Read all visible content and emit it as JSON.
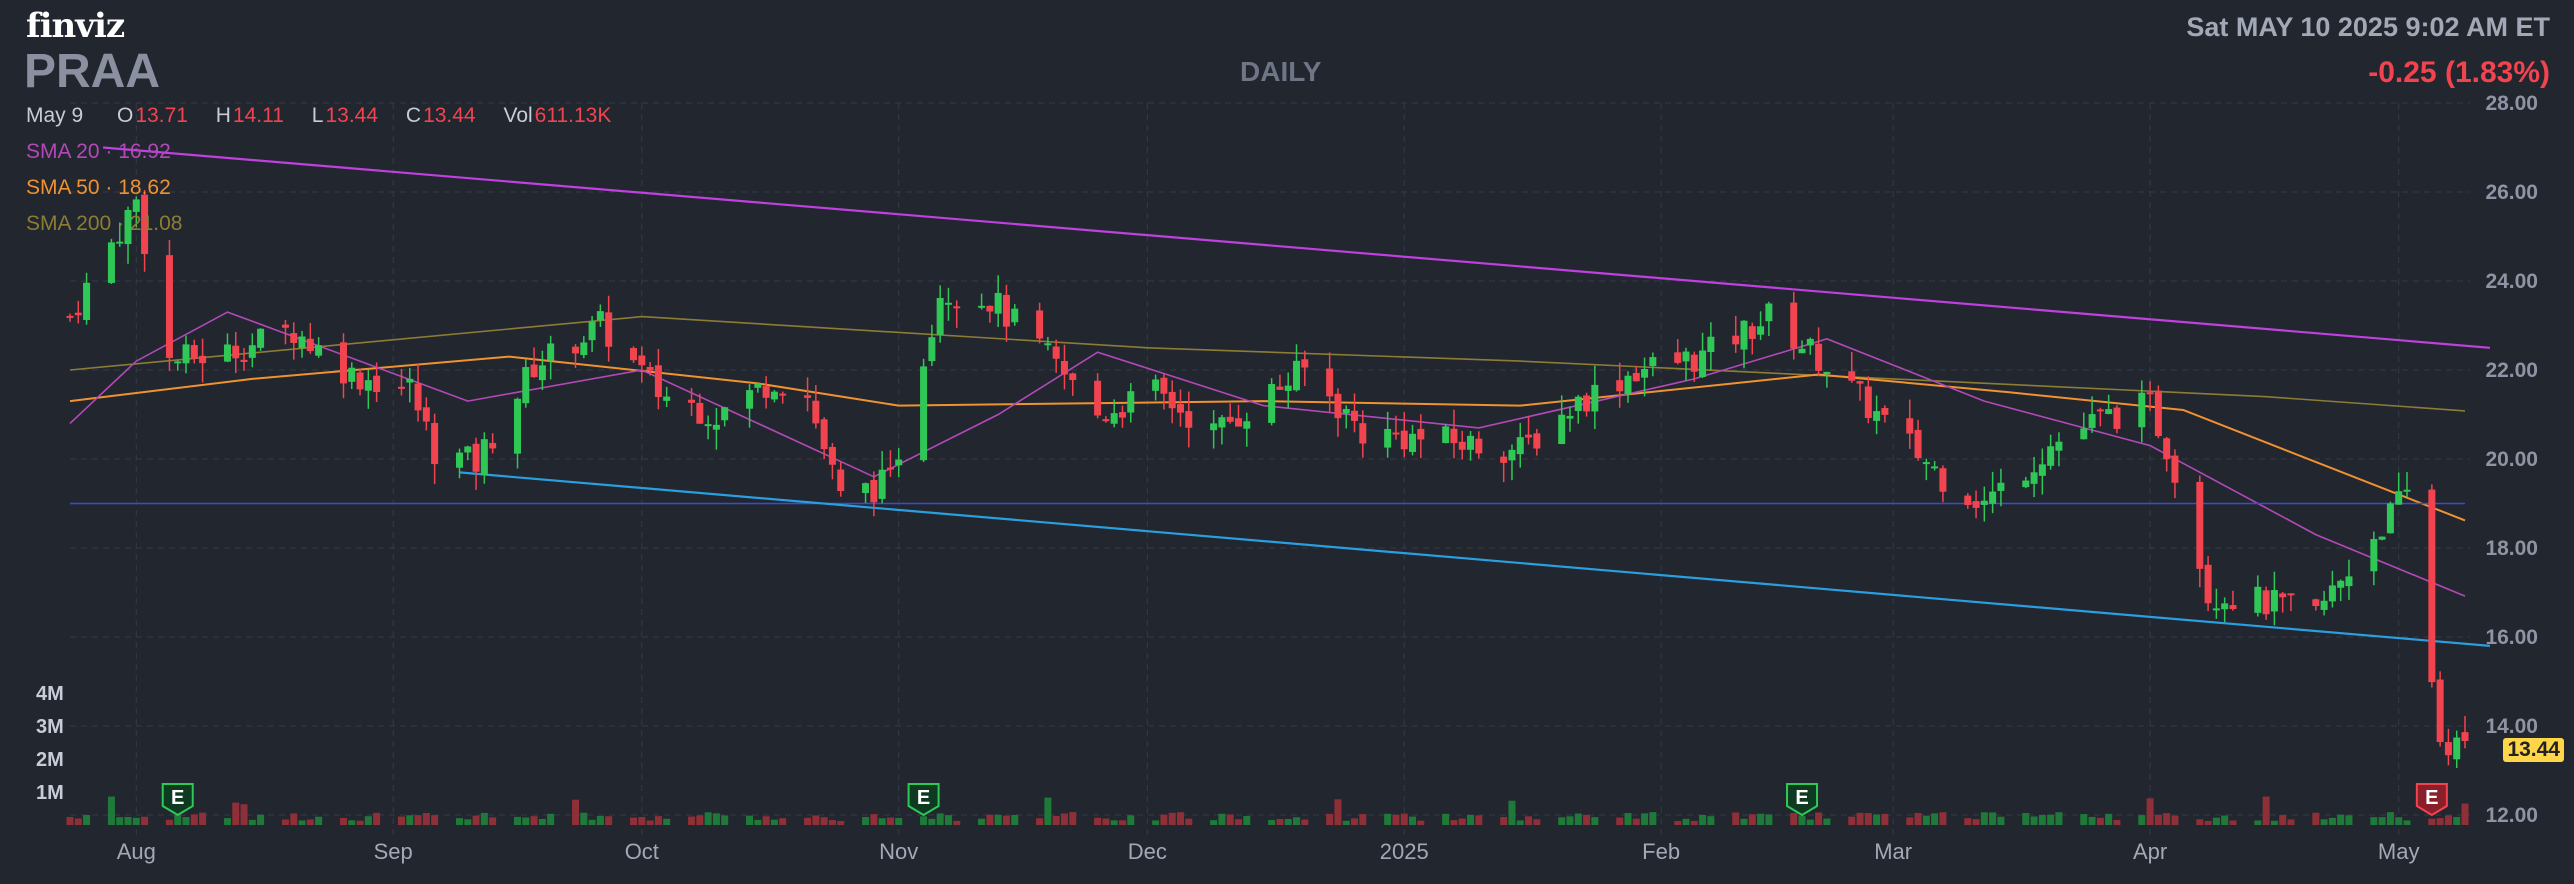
{
  "brand": "finviz",
  "ticker": "PRAA",
  "period": "DAILY",
  "datetime": "Sat MAY 10 2025 9:02 AM ET",
  "change": "-0.25 (1.83%)",
  "ohlc": {
    "date": "May 9",
    "o_label": "O",
    "o": "13.71",
    "h_label": "H",
    "h": "14.11",
    "l_label": "L",
    "l": "13.44",
    "c_label": "C",
    "c": "13.44",
    "vol_label": "Vol",
    "vol": "611.13K"
  },
  "sma": [
    {
      "label": "SMA 20",
      "value": "16.92",
      "color": "#b349b8"
    },
    {
      "label": "SMA 50",
      "value": "18.62",
      "color": "#f0922f"
    },
    {
      "label": "SMA 200",
      "value": "21.08",
      "color": "#8c7d35"
    }
  ],
  "last_price": "13.44",
  "earnings_marker": "E",
  "colors": {
    "up": "#2fc857",
    "down": "#f2444f",
    "upper_channel": "#c040e0",
    "lower_channel": "#2a9fe0",
    "support": "#3a4ad8"
  },
  "chart_data": {
    "type": "candlestick",
    "x_labels": [
      "Aug",
      "Sep",
      "Oct",
      "Nov",
      "Dec",
      "2025",
      "Feb",
      "Mar",
      "Apr",
      "May"
    ],
    "y_ticks": [
      "12.00",
      "14.00",
      "16.00",
      "18.00",
      "20.00",
      "22.00",
      "24.00",
      "26.00",
      "28.00"
    ],
    "ylim": [
      12,
      28
    ],
    "volume_ticks": [
      "1M",
      "2M",
      "3M",
      "4M"
    ],
    "grid": true,
    "x_range": [
      "2024-07-24",
      "2025-05-09"
    ],
    "close_path": [
      [
        "2024-07-24",
        23.2
      ],
      [
        "2024-08-01",
        25.8
      ],
      [
        "2024-08-05",
        22.2
      ],
      [
        "2024-08-12",
        22.4
      ],
      [
        "2024-08-20",
        22.9
      ],
      [
        "2024-08-27",
        21.9
      ],
      [
        "2024-09-03",
        21.6
      ],
      [
        "2024-09-06",
        20.2
      ],
      [
        "2024-09-11",
        19.9
      ],
      [
        "2024-09-18",
        22.1
      ],
      [
        "2024-09-26",
        23.0
      ],
      [
        "2024-10-03",
        21.5
      ],
      [
        "2024-10-10",
        21.0
      ],
      [
        "2024-10-17",
        21.8
      ],
      [
        "2024-10-21",
        21.4
      ],
      [
        "2024-10-25",
        19.1
      ],
      [
        "2024-10-31",
        19.5
      ],
      [
        "2024-11-06",
        23.8
      ],
      [
        "2024-11-12",
        23.6
      ],
      [
        "2024-11-18",
        22.5
      ],
      [
        "2024-11-25",
        21.0
      ],
      [
        "2024-12-02",
        21.5
      ],
      [
        "2024-12-09",
        20.6
      ],
      [
        "2024-12-16",
        21.5
      ],
      [
        "2024-12-20",
        22.0
      ],
      [
        "2024-12-27",
        20.6
      ],
      [
        "2025-01-06",
        20.4
      ],
      [
        "2025-01-15",
        20.2
      ],
      [
        "2025-01-22",
        21.3
      ],
      [
        "2025-01-29",
        22.0
      ],
      [
        "2025-02-06",
        22.3
      ],
      [
        "2025-02-14",
        23.2
      ],
      [
        "2025-02-21",
        22.1
      ],
      [
        "2025-02-28",
        20.8
      ],
      [
        "2025-03-07",
        19.6
      ],
      [
        "2025-03-12",
        19.0
      ],
      [
        "2025-03-20",
        20.3
      ],
      [
        "2025-03-26",
        20.9
      ],
      [
        "2025-04-01",
        21.2
      ],
      [
        "2025-04-04",
        19.8
      ],
      [
        "2025-04-08",
        17.0
      ],
      [
        "2025-04-14",
        16.8
      ],
      [
        "2025-04-21",
        16.5
      ],
      [
        "2025-04-28",
        18.3
      ],
      [
        "2025-05-02",
        19.2
      ],
      [
        "2025-05-06",
        13.7
      ],
      [
        "2025-05-09",
        13.44
      ]
    ],
    "sma20": [
      [
        "2024-07-24",
        20.8
      ],
      [
        "2024-08-01",
        22.2
      ],
      [
        "2024-08-12",
        23.3
      ],
      [
        "2024-09-10",
        21.3
      ],
      [
        "2024-10-01",
        22.0
      ],
      [
        "2024-10-29",
        19.6
      ],
      [
        "2024-11-13",
        21.0
      ],
      [
        "2024-11-25",
        22.4
      ],
      [
        "2024-12-15",
        21.2
      ],
      [
        "2025-01-10",
        20.7
      ],
      [
        "2025-02-05",
        21.8
      ],
      [
        "2025-02-21",
        22.7
      ],
      [
        "2025-03-12",
        21.3
      ],
      [
        "2025-04-01",
        20.3
      ],
      [
        "2025-04-21",
        18.3
      ],
      [
        "2025-05-09",
        16.92
      ]
    ],
    "sma50": [
      [
        "2024-07-24",
        21.3
      ],
      [
        "2024-08-15",
        21.8
      ],
      [
        "2024-09-15",
        22.3
      ],
      [
        "2024-10-15",
        21.7
      ],
      [
        "2024-11-01",
        21.2
      ],
      [
        "2024-12-15",
        21.3
      ],
      [
        "2025-01-15",
        21.2
      ],
      [
        "2025-02-20",
        21.9
      ],
      [
        "2025-03-15",
        21.5
      ],
      [
        "2025-04-05",
        21.1
      ],
      [
        "2025-05-09",
        18.62
      ]
    ],
    "sma200": [
      [
        "2024-07-24",
        22.0
      ],
      [
        "2024-10-01",
        23.2
      ],
      [
        "2024-12-01",
        22.5
      ],
      [
        "2025-01-15",
        22.2
      ],
      [
        "2025-03-01",
        21.8
      ],
      [
        "2025-04-15",
        21.4
      ],
      [
        "2025-05-09",
        21.08
      ]
    ],
    "upper_channel": [
      [
        "2024-07-28",
        27.0
      ],
      [
        "2025-05-12",
        22.5
      ]
    ],
    "lower_channel": [
      [
        "2024-09-09",
        19.7
      ],
      [
        "2025-05-12",
        15.8
      ]
    ],
    "support_level": 19.0,
    "earnings_dates": [
      "2024-08-06",
      "2024-11-04",
      "2025-02-18",
      "2025-05-05"
    ]
  }
}
